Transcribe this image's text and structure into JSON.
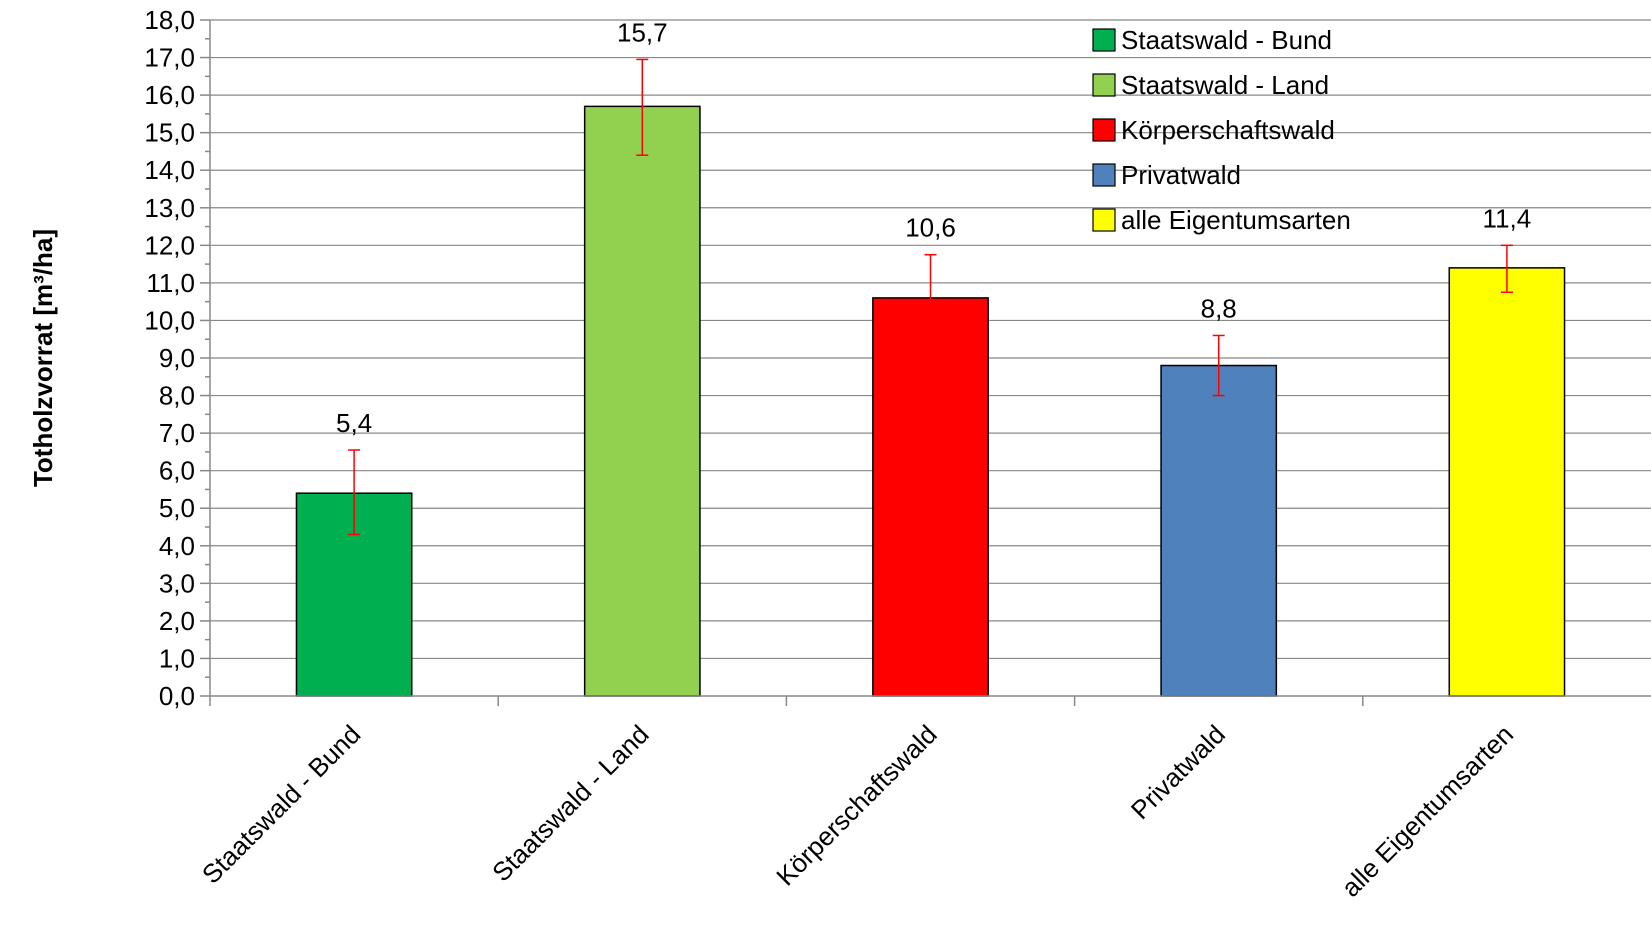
{
  "chart_data": {
    "type": "bar",
    "title": "",
    "xlabel": "",
    "ylabel": "Totholzvorrat [m³/ha]",
    "ylim": [
      0,
      18
    ],
    "y_major_step": 1,
    "y_minor_step": 0.5,
    "y_tick_labels": [
      "0,0",
      "1,0",
      "2,0",
      "3,0",
      "4,0",
      "5,0",
      "6,0",
      "7,0",
      "8,0",
      "9,0",
      "10,0",
      "11,0",
      "12,0",
      "13,0",
      "14,0",
      "15,0",
      "16,0",
      "17,0",
      "18,0"
    ],
    "grid": "horizontal major gridlines",
    "legend_position": "top-right",
    "categories": [
      "Staatswald - Bund",
      "Staatswald - Land",
      "Körperschaftswald",
      "Privatwald",
      "alle Eigentumsarten"
    ],
    "values": [
      5.4,
      15.7,
      10.6,
      8.8,
      11.4
    ],
    "data_labels": [
      "5,4",
      "15,7",
      "10,6",
      "8,8",
      "11,4"
    ],
    "error_low": [
      4.3,
      14.4,
      10.5,
      8.0,
      10.75
    ],
    "error_high": [
      6.55,
      16.95,
      11.75,
      9.6,
      12.0
    ],
    "colors": [
      "#00B050",
      "#92D050",
      "#FF0000",
      "#4F81BD",
      "#FFFF00"
    ],
    "error_bar_color": "#FF0000",
    "bar_outline_color": "#000000",
    "gridline_color": "#888888",
    "legend": [
      {
        "label": "Staatswald - Bund",
        "color": "#00B050"
      },
      {
        "label": "Staatswald - Land",
        "color": "#92D050"
      },
      {
        "label": "Körperschaftswald",
        "color": "#FF0000"
      },
      {
        "label": "Privatwald",
        "color": "#4F81BD"
      },
      {
        "label": "alle Eigentumsarten",
        "color": "#FFFF00"
      }
    ]
  }
}
